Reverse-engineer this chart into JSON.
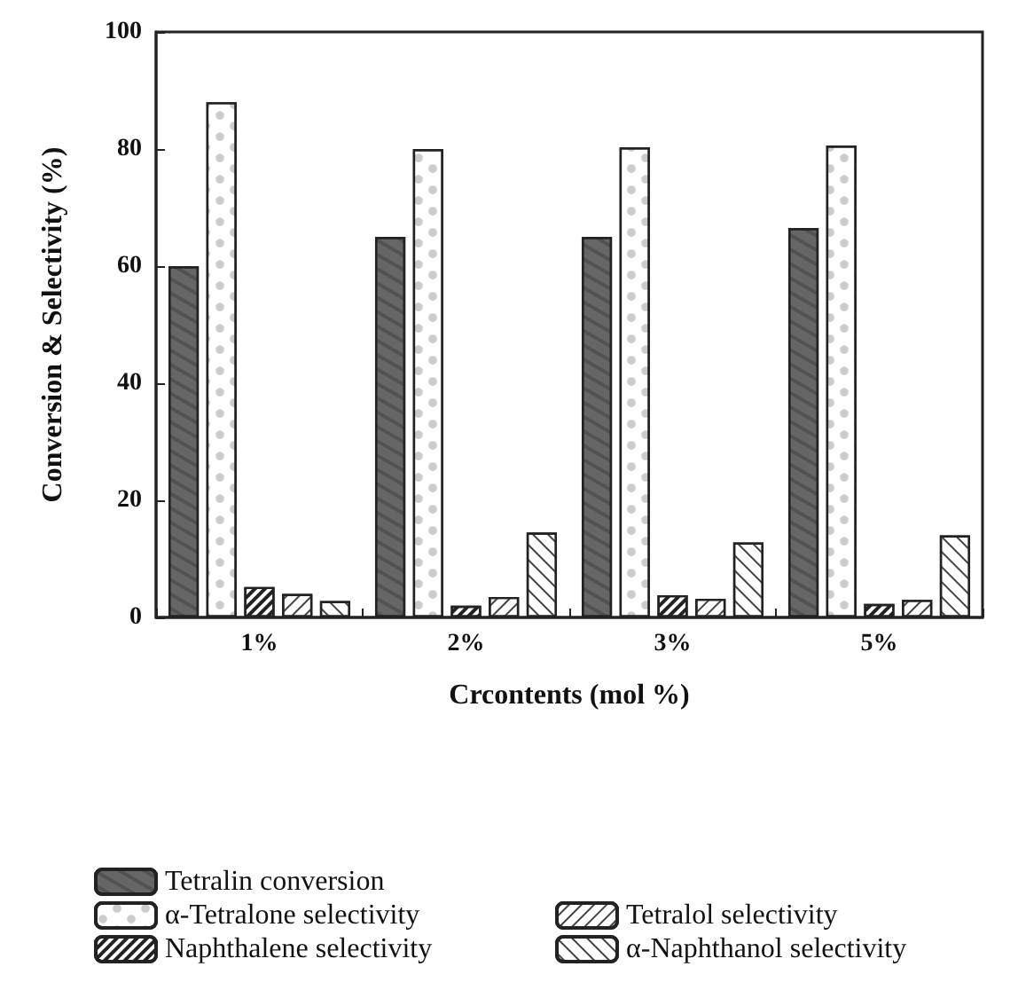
{
  "chart_data": {
    "type": "bar",
    "xlabel": "Crcontents (mol %)",
    "ylabel": "Conversion & Selectivity (%)",
    "categories": [
      "1%",
      "2%",
      "3%",
      "5%"
    ],
    "series": [
      {
        "name": "Tetralin conversion",
        "color": "#666666",
        "values": [
          60,
          65,
          65,
          66.5
        ]
      },
      {
        "name": "α-Tetralone selectivity",
        "color": "#ffffff",
        "values": [
          88,
          80,
          80.3,
          80.6
        ]
      },
      {
        "name": "Naphthalene selectivity",
        "color": "#ffffff",
        "values": [
          5.2,
          2,
          3.8,
          2.3
        ]
      },
      {
        "name": "Tetralol selectivity",
        "color": "#ffffff",
        "values": [
          4,
          3.5,
          3.2,
          3
        ]
      },
      {
        "name": "α-Naphthanol selectivity",
        "color": "#ffffff",
        "values": [
          2.8,
          14.5,
          12.8,
          14
        ]
      }
    ],
    "ylim": [
      0,
      100
    ],
    "yticks": [
      0,
      20,
      40,
      60,
      80,
      100
    ],
    "grid": false,
    "legend": "bottom"
  }
}
